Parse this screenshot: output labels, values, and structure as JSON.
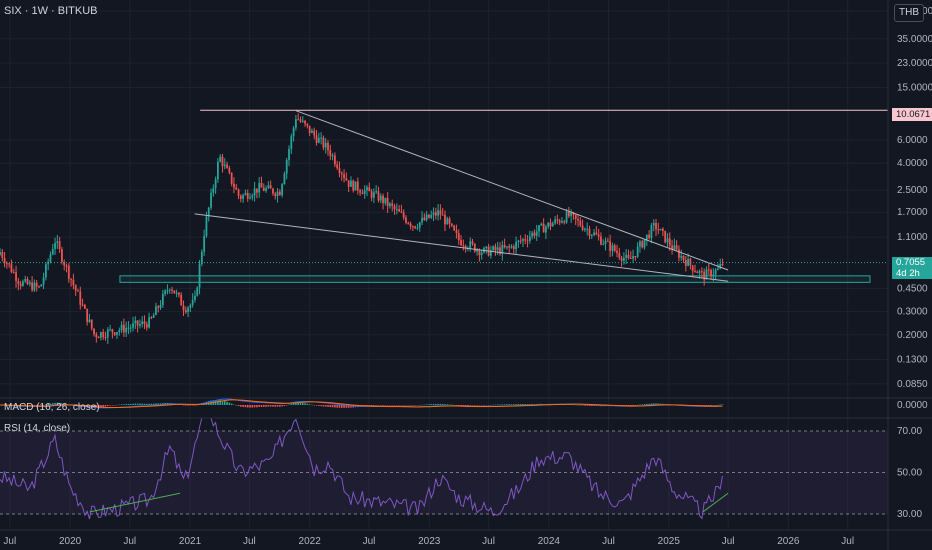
{
  "header": {
    "symbol_line": "SIX · 1W · BITKUB",
    "currency": "THB"
  },
  "tags": {
    "level": "10.0671",
    "last_price": "0.7055",
    "countdown": "4d 2h"
  },
  "panes": {
    "macd_label": "MACD (16, 26, close)",
    "rsi_label": "RSI (14, close)"
  },
  "price_axis": [
    "57.0000",
    "35.0000",
    "23.0000",
    "15.0000",
    "6.0000",
    "4.0000",
    "2.5000",
    "1.7000",
    "1.1000",
    "0.4500",
    "0.3000",
    "0.2000",
    "0.1300",
    "0.0850"
  ],
  "macd_axis": [
    "0.0000"
  ],
  "rsi_axis": [
    "70.00",
    "50.00",
    "30.00"
  ],
  "time_axis": [
    "Jul",
    "2020",
    "Jul",
    "2021",
    "Jul",
    "2022",
    "Jul",
    "2023",
    "Jul",
    "2024",
    "Jul",
    "2025",
    "Jul",
    "2026",
    "Jul"
  ],
  "chart_data": {
    "type": "candlestick",
    "symbol": "SIX",
    "interval": "1W",
    "exchange": "BITKUB",
    "currency": "THB",
    "scale": "log",
    "ylim": [
      0.07,
      60
    ],
    "x_range": [
      "2019-06",
      "2026-11"
    ],
    "price_key_points": [
      {
        "date": "2019-06-01",
        "price": 0.85
      },
      {
        "date": "2019-08-01",
        "price": 0.5
      },
      {
        "date": "2019-10-01",
        "price": 0.45
      },
      {
        "date": "2019-11-15",
        "price": 1.05
      },
      {
        "date": "2020-01-01",
        "price": 0.55
      },
      {
        "date": "2020-03-15",
        "price": 0.2
      },
      {
        "date": "2020-06-01",
        "price": 0.22
      },
      {
        "date": "2020-09-01",
        "price": 0.25
      },
      {
        "date": "2020-11-01",
        "price": 0.48
      },
      {
        "date": "2020-12-15",
        "price": 0.32
      },
      {
        "date": "2021-01-15",
        "price": 0.35
      },
      {
        "date": "2021-02-15",
        "price": 1.3
      },
      {
        "date": "2021-04-01",
        "price": 4.5
      },
      {
        "date": "2021-06-01",
        "price": 2.2
      },
      {
        "date": "2021-08-01",
        "price": 2.6
      },
      {
        "date": "2021-10-01",
        "price": 2.4
      },
      {
        "date": "2021-11-20",
        "price": 9.0
      },
      {
        "date": "2022-01-15",
        "price": 6.5
      },
      {
        "date": "2022-03-01",
        "price": 5.0
      },
      {
        "date": "2022-05-01",
        "price": 2.8
      },
      {
        "date": "2022-08-01",
        "price": 2.2
      },
      {
        "date": "2022-11-15",
        "price": 1.35
      },
      {
        "date": "2023-02-01",
        "price": 1.7
      },
      {
        "date": "2023-04-01",
        "price": 1.05
      },
      {
        "date": "2023-06-15",
        "price": 0.85
      },
      {
        "date": "2023-09-01",
        "price": 0.9
      },
      {
        "date": "2023-12-01",
        "price": 1.25
      },
      {
        "date": "2024-03-01",
        "price": 1.6
      },
      {
        "date": "2024-05-01",
        "price": 1.25
      },
      {
        "date": "2024-07-01",
        "price": 0.95
      },
      {
        "date": "2024-09-01",
        "price": 0.72
      },
      {
        "date": "2024-11-20",
        "price": 1.35
      },
      {
        "date": "2025-01-15",
        "price": 0.9
      },
      {
        "date": "2025-03-01",
        "price": 0.7
      },
      {
        "date": "2025-04-15",
        "price": 0.56
      },
      {
        "date": "2025-06-01",
        "price": 0.62
      },
      {
        "date": "2025-06-15",
        "price": 0.7055
      }
    ],
    "drawings": {
      "resistance_level": 10.0671,
      "wedge_upper": [
        {
          "date": "2021-11-20",
          "price": 10.0
        },
        {
          "date": "2025-07-01",
          "price": 0.62
        }
      ],
      "wedge_lower": [
        {
          "date": "2021-01-15",
          "price": 1.65
        },
        {
          "date": "2025-07-01",
          "price": 0.51
        }
      ],
      "support_zone": [
        0.5,
        0.56
      ],
      "last_price": 0.7055
    },
    "macd": {
      "fast": 16,
      "slow": 26,
      "source": "close",
      "ylabel": "0.0000"
    },
    "rsi": {
      "length": 14,
      "source": "close",
      "ylim": [
        30,
        70
      ],
      "levels": [
        70,
        50,
        30
      ],
      "key_points": [
        {
          "date": "2019-06-01",
          "value": 48
        },
        {
          "date": "2019-09-01",
          "value": 42
        },
        {
          "date": "2019-11-15",
          "value": 66
        },
        {
          "date": "2020-01-01",
          "value": 43
        },
        {
          "date": "2020-03-01",
          "value": 30
        },
        {
          "date": "2020-06-01",
          "value": 33
        },
        {
          "date": "2020-09-01",
          "value": 37
        },
        {
          "date": "2020-11-01",
          "value": 62
        },
        {
          "date": "2020-12-15",
          "value": 45
        },
        {
          "date": "2021-02-20",
          "value": 82
        },
        {
          "date": "2021-04-01",
          "value": 68
        },
        {
          "date": "2021-06-01",
          "value": 50
        },
        {
          "date": "2021-09-01",
          "value": 55
        },
        {
          "date": "2021-11-20",
          "value": 78
        },
        {
          "date": "2022-01-15",
          "value": 52
        },
        {
          "date": "2022-03-01",
          "value": 55
        },
        {
          "date": "2022-05-01",
          "value": 38
        },
        {
          "date": "2022-09-01",
          "value": 35
        },
        {
          "date": "2022-12-01",
          "value": 32
        },
        {
          "date": "2023-02-01",
          "value": 48
        },
        {
          "date": "2023-04-01",
          "value": 38
        },
        {
          "date": "2023-07-15",
          "value": 31
        },
        {
          "date": "2023-10-01",
          "value": 42
        },
        {
          "date": "2023-12-01",
          "value": 57
        },
        {
          "date": "2024-03-01",
          "value": 58
        },
        {
          "date": "2024-06-01",
          "value": 40
        },
        {
          "date": "2024-08-15",
          "value": 35
        },
        {
          "date": "2024-11-20",
          "value": 58
        },
        {
          "date": "2025-01-15",
          "value": 42
        },
        {
          "date": "2025-04-15",
          "value": 31
        },
        {
          "date": "2025-06-01",
          "value": 42
        },
        {
          "date": "2025-06-15",
          "value": 51
        }
      ],
      "trendline": [
        {
          "date": "2020-03-01",
          "value": 31
        },
        {
          "date": "2020-12-01",
          "value": 40
        }
      ],
      "trendline2": [
        {
          "date": "2025-04-15",
          "value": 31
        },
        {
          "date": "2025-07-01",
          "value": 40
        }
      ]
    }
  }
}
